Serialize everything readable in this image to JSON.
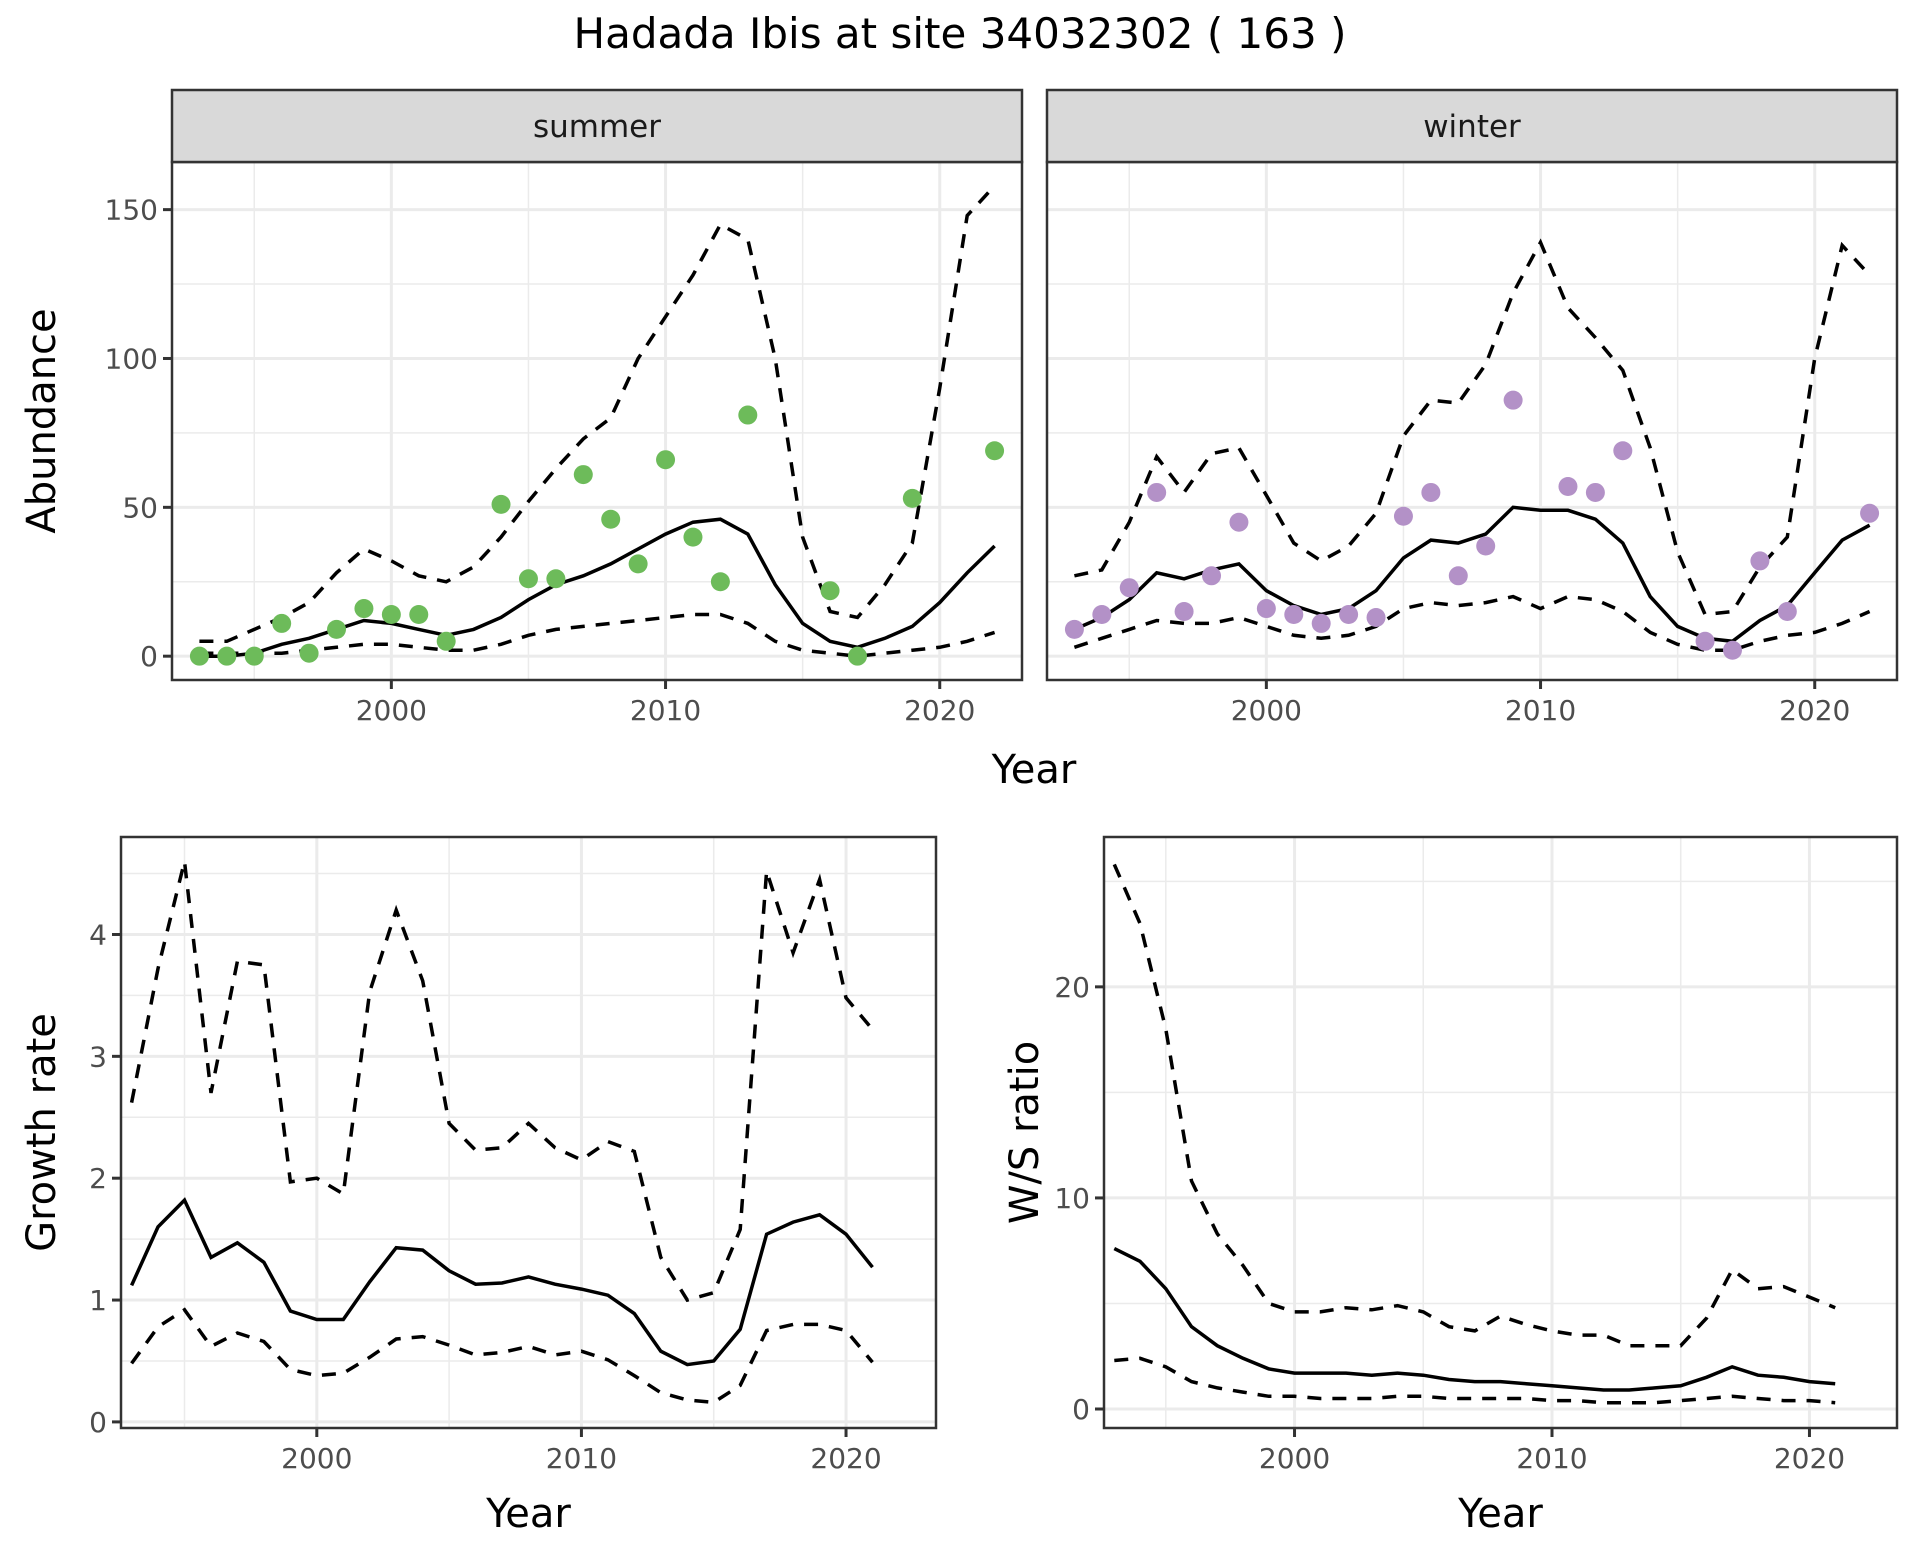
{
  "figure": {
    "title": "Hadada Ibis at site 34032302 ( 163 )"
  },
  "colors": {
    "summer_points": "#6dbb5a",
    "winter_points": "#b391c7",
    "line": "#000000",
    "grid": "#ebebeb",
    "strip_bg": "#d9d9d9"
  },
  "chart_data": [
    {
      "id": "abundance",
      "type": "scatter",
      "title": "",
      "facets": [
        "summer",
        "winter"
      ],
      "xlabel": "Year",
      "ylabel": "Abundance",
      "xlim": [
        1992,
        2023
      ],
      "ylim": [
        -8,
        166
      ],
      "xticks": [
        2000,
        2010,
        2020
      ],
      "yticks": [
        0,
        50,
        100,
        150
      ],
      "grid": true,
      "legend": "none",
      "years": [
        1993,
        1994,
        1995,
        1996,
        1997,
        1998,
        1999,
        2000,
        2001,
        2002,
        2003,
        2004,
        2005,
        2006,
        2007,
        2008,
        2009,
        2010,
        2011,
        2012,
        2013,
        2014,
        2015,
        2016,
        2017,
        2018,
        2019,
        2020,
        2021,
        2022
      ],
      "panels": {
        "summer": {
          "points": [
            [
              1993,
              0
            ],
            [
              1994,
              0
            ],
            [
              1995,
              0
            ],
            [
              1996,
              11
            ],
            [
              1997,
              1
            ],
            [
              1998,
              9
            ],
            [
              1999,
              16
            ],
            [
              2000,
              14
            ],
            [
              2001,
              14
            ],
            [
              2002,
              5
            ],
            [
              2004,
              51
            ],
            [
              2005,
              26
            ],
            [
              2006,
              26
            ],
            [
              2007,
              61
            ],
            [
              2008,
              46
            ],
            [
              2009,
              31
            ],
            [
              2010,
              66
            ],
            [
              2011,
              40
            ],
            [
              2012,
              25
            ],
            [
              2013,
              81
            ],
            [
              2016,
              22
            ],
            [
              2017,
              0
            ],
            [
              2019,
              53
            ],
            [
              2022,
              69
            ]
          ],
          "mean": [
            0,
            0,
            1,
            4,
            6,
            9,
            12,
            11,
            9,
            7,
            9,
            13,
            19,
            24,
            27,
            31,
            36,
            41,
            45,
            46,
            41,
            24,
            11,
            5,
            3,
            6,
            10,
            18,
            28,
            37
          ],
          "upper": [
            5,
            5,
            9,
            13,
            18,
            28,
            36,
            32,
            27,
            25,
            30,
            40,
            52,
            63,
            73,
            80,
            100,
            114,
            128,
            145,
            140,
            100,
            40,
            15,
            13,
            24,
            38,
            90,
            148,
            158
          ],
          "lower": [
            1,
            1,
            1,
            1,
            2,
            3,
            4,
            4,
            3,
            2,
            2,
            4,
            7,
            9,
            10,
            11,
            12,
            13,
            14,
            14,
            11,
            5,
            2,
            1,
            0,
            1,
            2,
            3,
            5,
            8
          ]
        },
        "winter": {
          "points": [
            [
              1993,
              9
            ],
            [
              1994,
              14
            ],
            [
              1995,
              23
            ],
            [
              1996,
              55
            ],
            [
              1997,
              15
            ],
            [
              1998,
              27
            ],
            [
              1999,
              45
            ],
            [
              2000,
              16
            ],
            [
              2001,
              14
            ],
            [
              2002,
              11
            ],
            [
              2003,
              14
            ],
            [
              2004,
              13
            ],
            [
              2005,
              47
            ],
            [
              2006,
              55
            ],
            [
              2007,
              27
            ],
            [
              2008,
              37
            ],
            [
              2009,
              86
            ],
            [
              2011,
              57
            ],
            [
              2012,
              55
            ],
            [
              2013,
              69
            ],
            [
              2016,
              5
            ],
            [
              2017,
              2
            ],
            [
              2018,
              32
            ],
            [
              2019,
              15
            ],
            [
              2022,
              48
            ]
          ],
          "mean": [
            9,
            13,
            19,
            28,
            26,
            29,
            31,
            22,
            17,
            14,
            16,
            22,
            33,
            39,
            38,
            41,
            50,
            49,
            49,
            46,
            38,
            20,
            10,
            6,
            5,
            12,
            17,
            28,
            39,
            44
          ],
          "upper": [
            27,
            29,
            45,
            67,
            55,
            68,
            70,
            54,
            38,
            32,
            37,
            48,
            74,
            86,
            85,
            98,
            122,
            139,
            117,
            107,
            96,
            70,
            35,
            14,
            15,
            30,
            40,
            100,
            138,
            128
          ],
          "lower": [
            3,
            6,
            9,
            12,
            11,
            11,
            13,
            10,
            7,
            6,
            7,
            10,
            16,
            18,
            17,
            18,
            20,
            16,
            20,
            19,
            15,
            8,
            4,
            2,
            2,
            5,
            7,
            8,
            11,
            15
          ]
        }
      }
    },
    {
      "id": "growth",
      "type": "line",
      "title": "",
      "xlabel": "Year",
      "ylabel": "Growth rate",
      "xlim": [
        1992.6,
        2023.4
      ],
      "ylim": [
        -0.05,
        4.8
      ],
      "xticks": [
        2000,
        2010,
        2020
      ],
      "yticks": [
        0,
        1,
        2,
        3,
        4
      ],
      "grid": true,
      "legend": "none",
      "years": [
        1993,
        1994,
        1995,
        1996,
        1997,
        1998,
        1999,
        2000,
        2001,
        2002,
        2003,
        2004,
        2005,
        2006,
        2007,
        2008,
        2009,
        2010,
        2011,
        2012,
        2013,
        2014,
        2015,
        2016,
        2017,
        2018,
        2019,
        2020,
        2021
      ],
      "series": [
        {
          "name": "mean",
          "style": "solid",
          "values": [
            1.12,
            1.6,
            1.82,
            1.35,
            1.47,
            1.31,
            0.91,
            0.84,
            0.84,
            1.15,
            1.43,
            1.41,
            1.24,
            1.13,
            1.14,
            1.19,
            1.13,
            1.09,
            1.04,
            0.89,
            0.58,
            0.47,
            0.5,
            0.76,
            1.54,
            1.64,
            1.7,
            1.54,
            1.27
          ]
        },
        {
          "name": "upper",
          "style": "dashed",
          "values": [
            2.62,
            3.72,
            4.6,
            2.7,
            3.78,
            3.75,
            1.97,
            2.0,
            1.87,
            3.53,
            4.2,
            3.62,
            2.45,
            2.23,
            2.25,
            2.45,
            2.25,
            2.15,
            2.3,
            2.22,
            1.35,
            1.0,
            1.06,
            1.58,
            4.52,
            3.85,
            4.45,
            3.48,
            3.22
          ]
        },
        {
          "name": "lower",
          "style": "dashed",
          "values": [
            0.48,
            0.78,
            0.92,
            0.62,
            0.73,
            0.66,
            0.43,
            0.38,
            0.4,
            0.53,
            0.68,
            0.7,
            0.63,
            0.55,
            0.57,
            0.62,
            0.55,
            0.58,
            0.51,
            0.38,
            0.24,
            0.18,
            0.16,
            0.3,
            0.75,
            0.8,
            0.8,
            0.75,
            0.49
          ]
        }
      ]
    },
    {
      "id": "ws_ratio",
      "type": "line",
      "title": "",
      "xlabel": "Year",
      "ylabel": "W/S ratio",
      "xlim": [
        1992.6,
        2023.4
      ],
      "ylim": [
        -0.9,
        27.1
      ],
      "xticks": [
        2000,
        2010,
        2020
      ],
      "yticks": [
        0,
        10,
        20
      ],
      "grid": true,
      "legend": "none",
      "years": [
        1993,
        1994,
        1995,
        1996,
        1997,
        1998,
        1999,
        2000,
        2001,
        2002,
        2003,
        2004,
        2005,
        2006,
        2007,
        2008,
        2009,
        2010,
        2011,
        2012,
        2013,
        2014,
        2015,
        2016,
        2017,
        2018,
        2019,
        2020,
        2021
      ],
      "series": [
        {
          "name": "mean",
          "style": "solid",
          "values": [
            7.6,
            7.0,
            5.7,
            3.9,
            3.0,
            2.4,
            1.9,
            1.7,
            1.7,
            1.7,
            1.6,
            1.7,
            1.6,
            1.4,
            1.3,
            1.3,
            1.2,
            1.1,
            1.0,
            0.9,
            0.9,
            1.0,
            1.1,
            1.5,
            2.0,
            1.6,
            1.5,
            1.3,
            1.2
          ]
        },
        {
          "name": "upper",
          "style": "dashed",
          "values": [
            25.8,
            23.0,
            18.0,
            10.8,
            8.3,
            6.8,
            5.0,
            4.6,
            4.6,
            4.8,
            4.7,
            4.9,
            4.6,
            3.9,
            3.7,
            4.4,
            4.0,
            3.7,
            3.5,
            3.5,
            3.0,
            3.0,
            3.0,
            4.3,
            6.6,
            5.7,
            5.8,
            5.3,
            4.8
          ]
        },
        {
          "name": "lower",
          "style": "dashed",
          "values": [
            2.3,
            2.4,
            2.0,
            1.3,
            1.0,
            0.8,
            0.6,
            0.6,
            0.5,
            0.5,
            0.5,
            0.6,
            0.6,
            0.5,
            0.5,
            0.5,
            0.5,
            0.4,
            0.4,
            0.3,
            0.3,
            0.3,
            0.4,
            0.5,
            0.6,
            0.5,
            0.4,
            0.4,
            0.3
          ]
        }
      ]
    }
  ]
}
